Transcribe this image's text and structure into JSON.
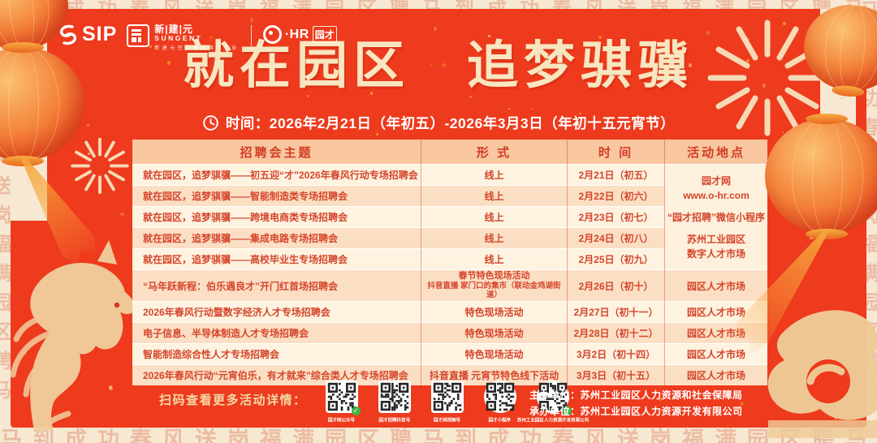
{
  "brand": {
    "sip": "SIP",
    "sungent_chars": "新|建|元",
    "sungent_en": "SUNGENT",
    "sungent_tagline": "新建元控股集团旗下企业",
    "ohr": "·HR",
    "ohr_suffix": "园才"
  },
  "header": {
    "title": "就在园区　追梦骐骥",
    "time_line": "时间：2026年2月21日（年初五）-2026年3月3日（年初十五元宵节）"
  },
  "table": {
    "headers": [
      "招聘会主题",
      "形 式",
      "时 间",
      "活动地点"
    ],
    "merged_location": {
      "lines": [
        "园才网",
        "www.o-hr.com",
        "“园才招聘”微信小程序",
        "苏州工业园区",
        "数字人才市场"
      ]
    },
    "rows": [
      {
        "theme": "就在园区，追梦骐骥——初五迎“才”2026年春风行动专场招聘会",
        "form": "线上",
        "date": "2月21日（初五）"
      },
      {
        "theme": "就在园区，追梦骐骥——智能制造类专场招聘会",
        "form": "线上",
        "date": "2月22日（初六）"
      },
      {
        "theme": "就在园区，追梦骐骥——跨境电商类专场招聘会",
        "form": "线上",
        "date": "2月23日（初七）"
      },
      {
        "theme": "就在园区，追梦骐骥——集成电路专场招聘会",
        "form": "线上",
        "date": "2月24日（初八）"
      },
      {
        "theme": "就在园区，追梦骐骥——高校毕业生专场招聘会",
        "form": "线上",
        "date": "2月25日（初九）"
      },
      {
        "theme": "“马年跃新程：伯乐遇良才”开门红首场招聘会",
        "form": "春节特色现场活动",
        "form2": "抖音直播 家门口的集市（联动金鸡湖街道）",
        "date": "2月26日（初十）",
        "location": "园区人才市场"
      },
      {
        "theme": "2026年春风行动暨数字经济人才专场招聘会",
        "form": "特色现场活动",
        "date": "2月27日（初十一）",
        "location": "园区人才市场"
      },
      {
        "theme": "电子信息、半导体制造人才专场招聘会",
        "form": "特色现场活动",
        "date": "2月28日（初十二）",
        "location": "园区人才市场"
      },
      {
        "theme": "智能制造综合性人才专场招聘会",
        "form": "特色现场活动",
        "date": "3月2日（初十四）",
        "location": "园区人才市场"
      },
      {
        "theme": "2026年春风行动“元宵伯乐，有才就来”综合类人才专场招聘会",
        "form": "抖音直播 元宵节特色线下活动",
        "date": "3月3日（初十五）",
        "location": "园区人才市场"
      }
    ]
  },
  "footer": {
    "scan_label": "扫码查看更多活动详情：",
    "qr_captions": [
      "园才网公众号",
      "园才招聘抖音号",
      "园才网视频号",
      "园才小程序",
      "苏州工业园区人力资源开发有限公司"
    ],
    "host_line": "主办单位：苏州工业园区人力资源和社会保障局",
    "organizer_line": "承办单位：苏州工业园区人力资源开发有限公司"
  },
  "decor": {
    "watermark_text": "马到成功春风送岗福满园区聘马到成功春风送岗福满园区聘马到成功春风送岗福满园区聘马到成功春风送岗"
  },
  "colors": {
    "background_red": "#EE3A1D",
    "frame_cream": "#F7E8D2",
    "title_gold": "#F7E6C0",
    "header_peach": "#F8C7A0",
    "row_light": "#FEF3E1",
    "row_peach": "#FBDFC4",
    "text_red": "#D5452B",
    "lantern_orange": "#F4823A",
    "scan_gold": "#F6D9A4",
    "qr_green": "#3EB348"
  }
}
